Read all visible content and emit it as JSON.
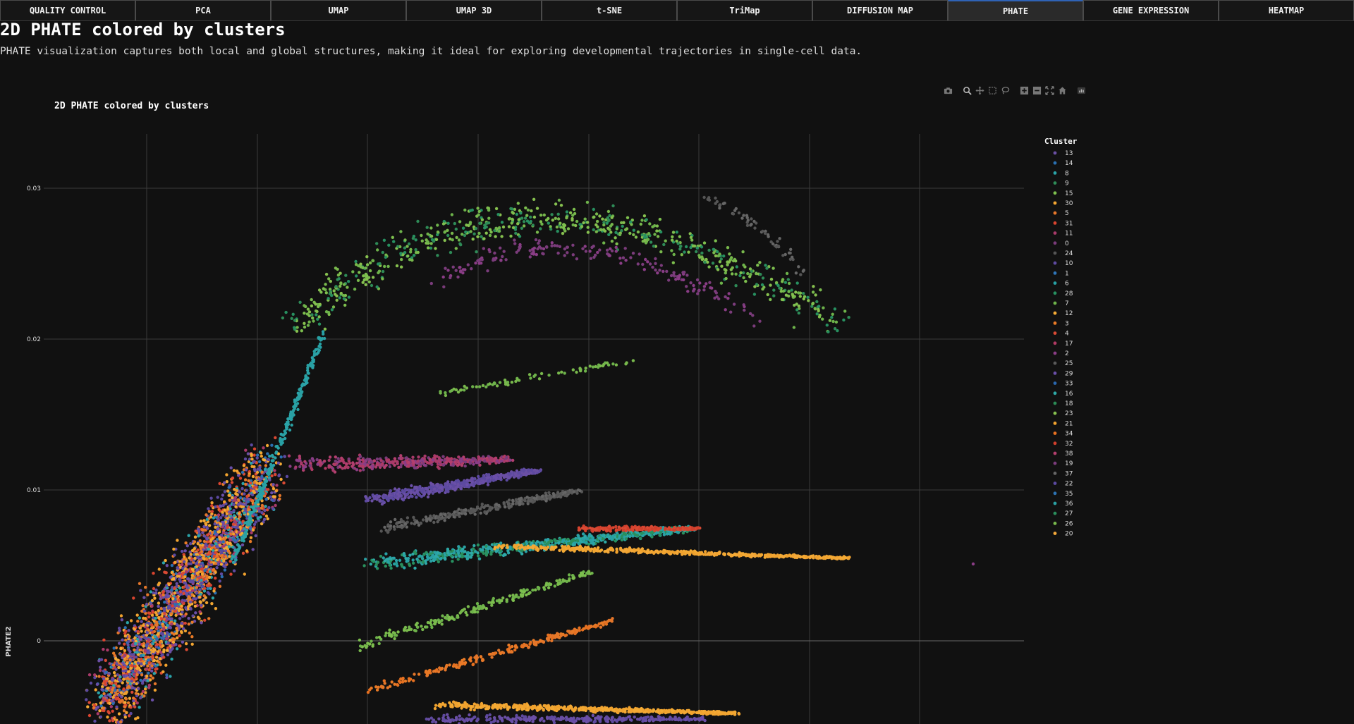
{
  "tabs": [
    {
      "label": "QUALITY CONTROL",
      "active": false
    },
    {
      "label": "PCA",
      "active": false
    },
    {
      "label": "UMAP",
      "active": false
    },
    {
      "label": "UMAP 3D",
      "active": false
    },
    {
      "label": "t-SNE",
      "active": false
    },
    {
      "label": "TriMap",
      "active": false
    },
    {
      "label": "DIFFUSION MAP",
      "active": false
    },
    {
      "label": "PHATE",
      "active": true
    },
    {
      "label": "GENE EXPRESSION",
      "active": false
    },
    {
      "label": "HEATMAP",
      "active": false
    }
  ],
  "page": {
    "title": "2D PHATE colored by clusters",
    "description": "PHATE visualization captures both local and global structures, making it ideal for exploring developmental trajectories in single-cell data."
  },
  "modebar": [
    "camera-icon",
    "zoom-icon",
    "pan-icon",
    "box-select-icon",
    "lasso-icon",
    "zoom-in-icon",
    "zoom-out-icon",
    "autoscale-icon",
    "reset-axes-icon",
    "plotly-logo-icon"
  ],
  "colors": {
    "background": "#111111",
    "grid": "#3c3c3c",
    "accent": "#2f63b6"
  },
  "chart_data": {
    "type": "scatter",
    "title": "2D PHATE colored by clusters",
    "xlabel": "",
    "ylabel": "PHATE2",
    "y_ticks": [
      "0.03",
      "0.02",
      "0.01",
      "0"
    ],
    "y_tick_values": [
      0.03,
      0.02,
      0.01,
      0
    ],
    "x_tick_labels_visible": false,
    "grid": true,
    "legend_title": "Cluster",
    "legend_placement": "right",
    "series": [
      {
        "name": "13",
        "color": "#6a4fa3"
      },
      {
        "name": "14",
        "color": "#2a6fb0"
      },
      {
        "name": "8",
        "color": "#2aa3a8"
      },
      {
        "name": "9",
        "color": "#2e8b57"
      },
      {
        "name": "15",
        "color": "#7dbf4e"
      },
      {
        "name": "30",
        "color": "#f2a531"
      },
      {
        "name": "5",
        "color": "#e4762a"
      },
      {
        "name": "31",
        "color": "#d9442f"
      },
      {
        "name": "11",
        "color": "#a83a6a"
      },
      {
        "name": "0",
        "color": "#7a3b7a"
      },
      {
        "name": "24",
        "color": "#555555"
      },
      {
        "name": "10",
        "color": "#5e4aa0"
      },
      {
        "name": "1",
        "color": "#2f74b7"
      },
      {
        "name": "6",
        "color": "#27a0a4"
      },
      {
        "name": "28",
        "color": "#279060"
      },
      {
        "name": "7",
        "color": "#6db24a"
      },
      {
        "name": "12",
        "color": "#f4ab35"
      },
      {
        "name": "3",
        "color": "#e87a26"
      },
      {
        "name": "4",
        "color": "#d94a34"
      },
      {
        "name": "17",
        "color": "#b03a64"
      },
      {
        "name": "2",
        "color": "#8a3d86"
      },
      {
        "name": "25",
        "color": "#5a5a5a"
      },
      {
        "name": "29",
        "color": "#6a4fa8"
      },
      {
        "name": "33",
        "color": "#2a66ad"
      },
      {
        "name": "16",
        "color": "#2ea9a7"
      },
      {
        "name": "18",
        "color": "#2b8a55"
      },
      {
        "name": "23",
        "color": "#86c04f"
      },
      {
        "name": "21",
        "color": "#f0a22e"
      },
      {
        "name": "34",
        "color": "#e57020"
      },
      {
        "name": "32",
        "color": "#d03f2c"
      },
      {
        "name": "38",
        "color": "#b33f6e"
      },
      {
        "name": "19",
        "color": "#7b3c7c"
      },
      {
        "name": "37",
        "color": "#666666"
      },
      {
        "name": "22",
        "color": "#5b49a0"
      },
      {
        "name": "35",
        "color": "#2d72b2"
      },
      {
        "name": "36",
        "color": "#2aa0a3"
      },
      {
        "name": "27",
        "color": "#2a8e5c"
      },
      {
        "name": "26",
        "color": "#78b84c"
      },
      {
        "name": "20",
        "color": "#f3a83a"
      }
    ]
  }
}
